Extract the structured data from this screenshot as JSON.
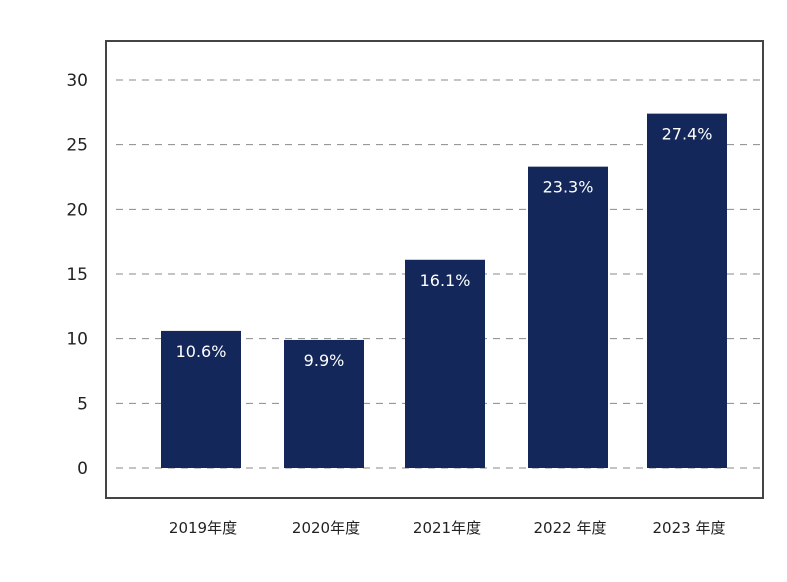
{
  "chart_data": {
    "type": "bar",
    "categories": [
      "2019年度",
      "2020年度",
      "2021年度",
      "2022 年度",
      "2023 年度"
    ],
    "values": [
      10.6,
      9.9,
      16.1,
      23.3,
      27.4
    ],
    "value_labels": [
      "10.6%",
      "9.9%",
      "16.1%",
      "23.3%",
      "27.4%"
    ],
    "yticks": [
      "0",
      "5",
      "10",
      "15",
      "20",
      "25",
      "30"
    ],
    "ylim": [
      0,
      30
    ],
    "grid": "horizontal-dashed",
    "legend": "none"
  },
  "colors": {
    "bar": "#13275a",
    "grid": "#8a8a8a",
    "frame": "#444444",
    "label": "#ffffff"
  }
}
